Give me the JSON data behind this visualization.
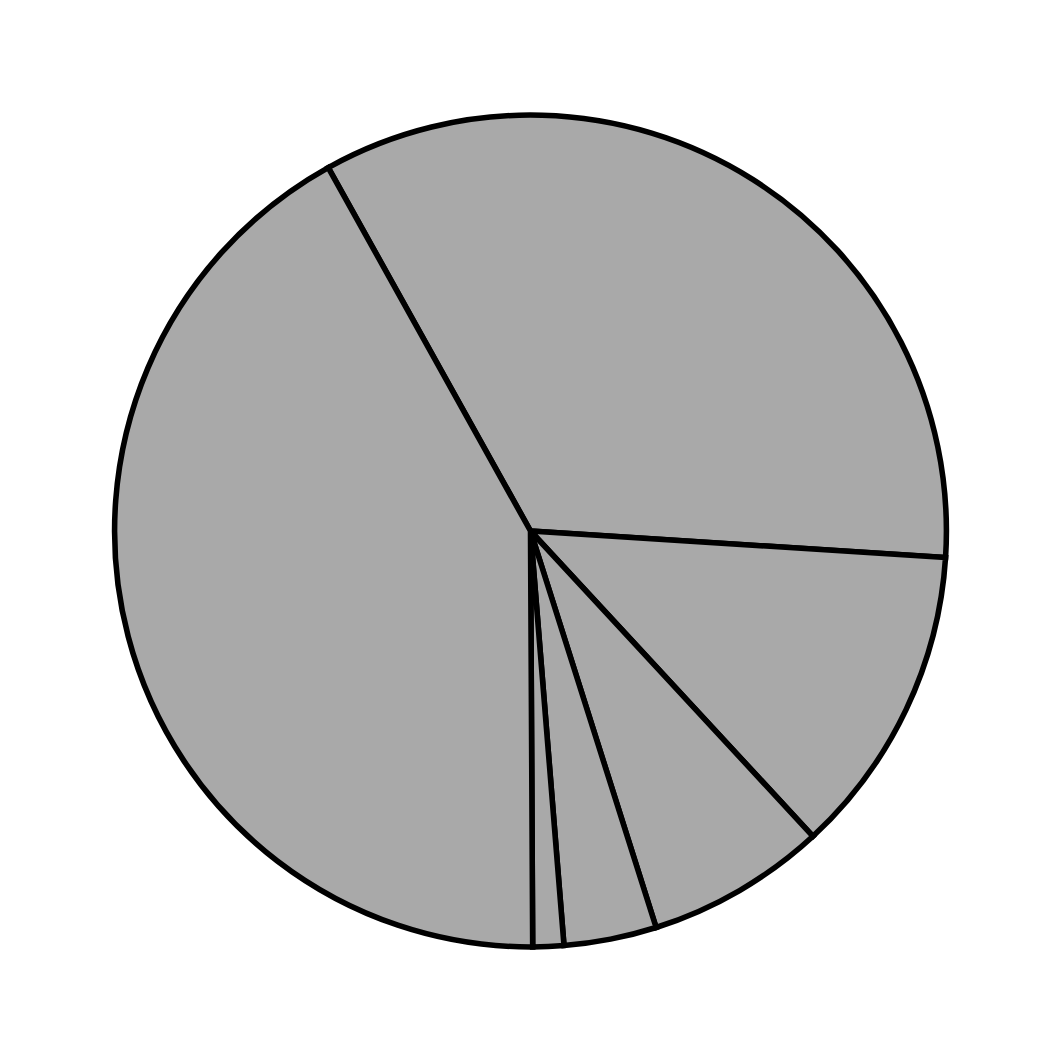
{
  "chart_data": {
    "type": "pie",
    "categories": [
      null,
      null,
      null,
      null,
      null,
      null
    ],
    "values": [
      34.1,
      12.1,
      7.0,
      3.6,
      1.2,
      42.0
    ],
    "colors": [
      "#a9a9a9",
      "#a9a9a9",
      "#a9a9a9",
      "#a9a9a9",
      "#a9a9a9",
      "#a9a9a9"
    ]
  }
}
